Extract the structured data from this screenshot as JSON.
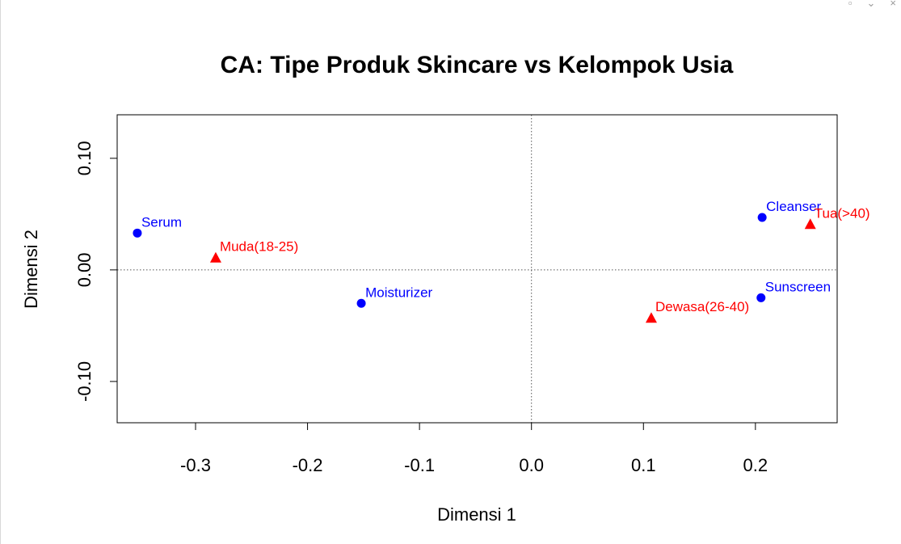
{
  "window": {
    "controls": [
      {
        "name": "restore-icon",
        "glyph": "▫"
      },
      {
        "name": "minimize-icon",
        "glyph": "⌄"
      },
      {
        "name": "close-icon",
        "glyph": "×"
      }
    ]
  },
  "chart_data": {
    "type": "scatter",
    "title": "CA: Tipe Produk Skincare vs Kelompok Usia",
    "xlabel": "Dimensi 1",
    "ylabel": "Dimensi 2",
    "xlim": [
      -0.37,
      0.273
    ],
    "ylim": [
      -0.137,
      0.139
    ],
    "x_ticks": [
      {
        "value": -0.3,
        "label": "-0.3"
      },
      {
        "value": -0.2,
        "label": "-0.2"
      },
      {
        "value": -0.1,
        "label": "-0.1"
      },
      {
        "value": 0.0,
        "label": "0.0"
      },
      {
        "value": 0.1,
        "label": "0.1"
      },
      {
        "value": 0.2,
        "label": "0.2"
      }
    ],
    "y_ticks": [
      {
        "value": -0.1,
        "label": "-0.10"
      },
      {
        "value": 0.0,
        "label": "0.00"
      },
      {
        "value": 0.1,
        "label": "0.10"
      }
    ],
    "reference_lines": {
      "x": 0,
      "y": 0
    },
    "grid": false,
    "series": [
      {
        "marker": "circle",
        "color": "#0000ff",
        "points": [
          {
            "label": "Serum",
            "x": -0.352,
            "y": 0.033
          },
          {
            "label": "Moisturizer",
            "x": -0.152,
            "y": -0.03
          },
          {
            "label": "Cleanser",
            "x": 0.206,
            "y": 0.047
          },
          {
            "label": "Sunscreen",
            "x": 0.205,
            "y": -0.025
          }
        ]
      },
      {
        "marker": "triangle",
        "color": "#ff0000",
        "points": [
          {
            "label": "Muda(18-25)",
            "x": -0.282,
            "y": 0.011
          },
          {
            "label": "Dewasa(26-40)",
            "x": 0.107,
            "y": -0.043
          },
          {
            "label": "Tua(>40)",
            "x": 0.249,
            "y": 0.041
          }
        ]
      }
    ]
  }
}
